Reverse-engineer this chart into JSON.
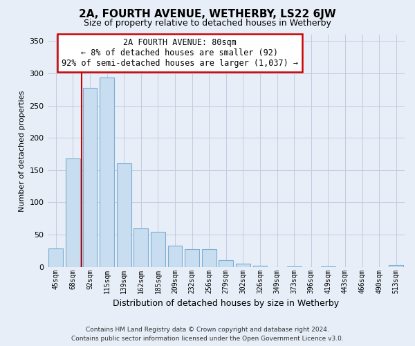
{
  "title": "2A, FOURTH AVENUE, WETHERBY, LS22 6JW",
  "subtitle": "Size of property relative to detached houses in Wetherby",
  "xlabel": "Distribution of detached houses by size in Wetherby",
  "ylabel": "Number of detached properties",
  "bar_labels": [
    "45sqm",
    "68sqm",
    "92sqm",
    "115sqm",
    "139sqm",
    "162sqm",
    "185sqm",
    "209sqm",
    "232sqm",
    "256sqm",
    "279sqm",
    "302sqm",
    "326sqm",
    "349sqm",
    "373sqm",
    "396sqm",
    "419sqm",
    "443sqm",
    "466sqm",
    "490sqm",
    "513sqm"
  ],
  "bar_values": [
    29,
    168,
    277,
    293,
    161,
    60,
    54,
    33,
    27,
    27,
    10,
    5,
    2,
    0,
    1,
    0,
    1,
    0,
    0,
    0,
    3
  ],
  "bar_color": "#c8ddef",
  "bar_edge_color": "#7aaed4",
  "highlight_line_color": "#cc0000",
  "ylim": [
    0,
    360
  ],
  "yticks": [
    0,
    50,
    100,
    150,
    200,
    250,
    300,
    350
  ],
  "annotation_title": "2A FOURTH AVENUE: 80sqm",
  "annotation_line1": "← 8% of detached houses are smaller (92)",
  "annotation_line2": "92% of semi-detached houses are larger (1,037) →",
  "annotation_box_color": "#ffffff",
  "annotation_border_color": "#cc0000",
  "footer_line1": "Contains HM Land Registry data © Crown copyright and database right 2024.",
  "footer_line2": "Contains public sector information licensed under the Open Government Licence v3.0.",
  "bg_color": "#e8eef8",
  "plot_bg_color": "#e8eef8",
  "grid_color": "#c0cce0"
}
